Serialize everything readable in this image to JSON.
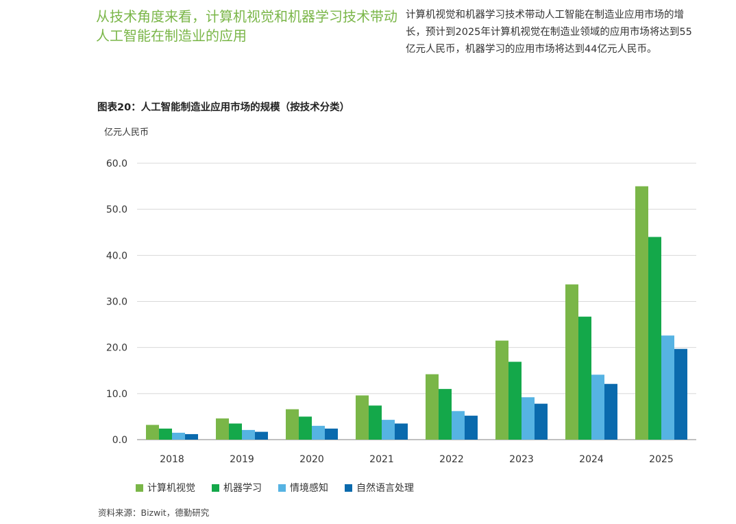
{
  "headline": "从技术角度来看，计算机视觉和机器学习技术带动人工智能在制造业的应用",
  "intro": "计算机视觉和机器学习技术带动人工智能在制造业应用市场的增长，预计到2025年计算机视觉在制造业领域的应用市场将达到55亿元人民币，机器学习的应用市场将达到44亿元人民币。",
  "figure_title": "图表20：人工智能制造业应用市场的规模（按技术分类）",
  "unit_label": "亿元人民币",
  "source": "资料来源：Bizwit，德勤研究",
  "colors": {
    "headline": "#7ab648",
    "series": [
      "#7ab648",
      "#14a84a",
      "#56b3e3",
      "#0a6aad"
    ],
    "grid": "#d8d8d8"
  },
  "chart_data": {
    "type": "bar",
    "title": "图表20：人工智能制造业应用市场的规模（按技术分类）",
    "ylabel": "亿元人民币",
    "xlabel": "",
    "categories": [
      "2018",
      "2019",
      "2020",
      "2021",
      "2022",
      "2023",
      "2024",
      "2025"
    ],
    "series": [
      {
        "name": "计算机视觉",
        "values": [
          3.2,
          4.6,
          6.6,
          9.6,
          14.2,
          21.5,
          33.7,
          55.0
        ]
      },
      {
        "name": "机器学习",
        "values": [
          2.4,
          3.5,
          5.0,
          7.4,
          11.0,
          16.9,
          26.7,
          44.0
        ]
      },
      {
        "name": "情境感知",
        "values": [
          1.5,
          2.1,
          3.0,
          4.3,
          6.2,
          9.2,
          14.1,
          22.6
        ]
      },
      {
        "name": "自然语言处理",
        "values": [
          1.2,
          1.7,
          2.4,
          3.5,
          5.2,
          7.8,
          12.1,
          19.7
        ]
      }
    ],
    "yticks": [
      "0.0",
      "10.0",
      "20.0",
      "30.0",
      "40.0",
      "50.0",
      "60.0"
    ],
    "ylim": [
      0,
      60
    ],
    "grid": true,
    "legend_position": "bottom"
  }
}
